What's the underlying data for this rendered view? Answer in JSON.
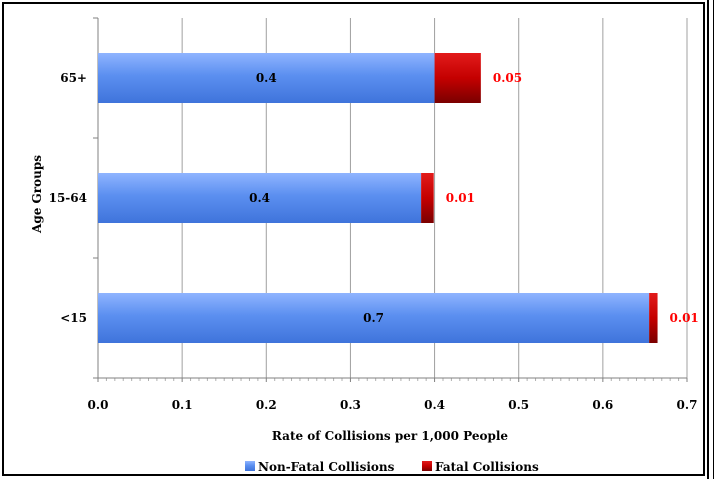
{
  "chart_data": {
    "type": "bar",
    "orientation": "horizontal",
    "stacked": true,
    "categories": [
      "<15",
      "15-64",
      "65+"
    ],
    "series": [
      {
        "name": "Non-Fatal Collisions",
        "values": [
          0.655,
          0.384,
          0.4
        ],
        "labels": [
          "0.7",
          "0.4",
          "0.4"
        ],
        "color": "#5b8ff0"
      },
      {
        "name": "Fatal Collisions",
        "values": [
          0.01,
          0.015,
          0.055
        ],
        "labels": [
          "0.01",
          "0.01",
          "0.05"
        ],
        "color": "#cc0000"
      }
    ],
    "xlim": [
      0,
      0.7
    ],
    "xticks": [
      "0.0",
      "0.1",
      "0.2",
      "0.3",
      "0.4",
      "0.5",
      "0.6",
      "0.7"
    ],
    "xlabel": "Rate of Collisions per 1,000 People",
    "ylabel": "Age Groups",
    "grid": "vertical",
    "legend": "bottom",
    "fatal_label_color": "#ff0000"
  }
}
